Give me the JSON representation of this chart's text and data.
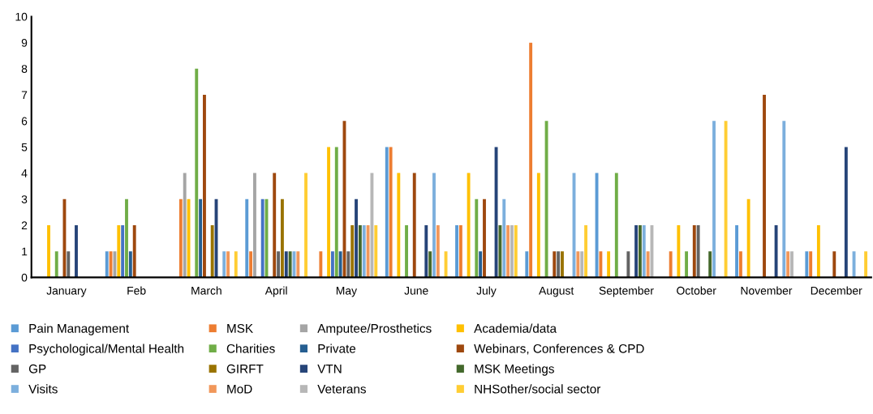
{
  "chart_data": {
    "type": "bar",
    "categories": [
      "January",
      "Feb",
      "March",
      "April",
      "May",
      "June",
      "July",
      "August",
      "September",
      "October",
      "November",
      "December"
    ],
    "ylim": [
      0,
      10
    ],
    "yticks": [
      0,
      1,
      2,
      3,
      4,
      5,
      6,
      7,
      8,
      9,
      10
    ],
    "grid": false,
    "legend": "bottom",
    "series": [
      {
        "name": "Pain Management",
        "color": "#5b9bd5",
        "values": [
          0,
          1,
          0,
          3,
          0,
          5,
          2,
          1,
          4,
          0,
          2,
          1
        ]
      },
      {
        "name": "MSK",
        "color": "#ed7d31",
        "values": [
          0,
          1,
          3,
          1,
          1,
          5,
          2,
          9,
          1,
          1,
          1,
          1
        ]
      },
      {
        "name": "Amputee/Prosthetics",
        "color": "#a5a5a5",
        "values": [
          0,
          1,
          4,
          4,
          0,
          0,
          0,
          0,
          0,
          0,
          0,
          0
        ]
      },
      {
        "name": "Academia/data",
        "color": "#ffc000",
        "values": [
          2,
          2,
          3,
          0,
          5,
          4,
          4,
          4,
          1,
          2,
          3,
          2
        ]
      },
      {
        "name": "Psychological/Mental Health",
        "color": "#4472c4",
        "values": [
          0,
          2,
          0,
          3,
          1,
          0,
          0,
          0,
          0,
          0,
          0,
          0
        ]
      },
      {
        "name": "Charities",
        "color": "#70ad47",
        "values": [
          1,
          3,
          8,
          3,
          5,
          2,
          3,
          6,
          4,
          1,
          0,
          0
        ]
      },
      {
        "name": "Private",
        "color": "#255e91",
        "values": [
          0,
          1,
          3,
          0,
          1,
          0,
          1,
          0,
          0,
          0,
          0,
          0
        ]
      },
      {
        "name": "Webinars, Conferences & CPD",
        "color": "#9e480e",
        "values": [
          3,
          2,
          7,
          4,
          6,
          4,
          3,
          1,
          0,
          2,
          7,
          1
        ]
      },
      {
        "name": "GP",
        "color": "#636363",
        "values": [
          1,
          0,
          0,
          1,
          1,
          0,
          0,
          1,
          1,
          2,
          0,
          0
        ]
      },
      {
        "name": "GIRFT",
        "color": "#997300",
        "values": [
          0,
          0,
          2,
          3,
          2,
          0,
          0,
          1,
          0,
          0,
          0,
          0
        ]
      },
      {
        "name": "VTN",
        "color": "#264478",
        "values": [
          2,
          0,
          3,
          1,
          3,
          2,
          5,
          0,
          2,
          0,
          2,
          5
        ]
      },
      {
        "name": "MSK Meetings",
        "color": "#43682b",
        "values": [
          0,
          0,
          0,
          1,
          2,
          1,
          2,
          0,
          2,
          1,
          0,
          0
        ]
      },
      {
        "name": "Visits",
        "color": "#7cafdd",
        "values": [
          0,
          0,
          1,
          1,
          2,
          4,
          3,
          4,
          2,
          6,
          6,
          1
        ]
      },
      {
        "name": "MoD",
        "color": "#f1975a",
        "values": [
          0,
          0,
          1,
          1,
          2,
          2,
          2,
          1,
          1,
          0,
          1,
          0
        ]
      },
      {
        "name": "Veterans",
        "color": "#b7b7b7",
        "values": [
          0,
          0,
          0,
          0,
          4,
          0,
          2,
          1,
          2,
          0,
          1,
          0
        ]
      },
      {
        "name": "NHSother/social sector",
        "color": "#ffcd33",
        "values": [
          0,
          0,
          1,
          4,
          2,
          1,
          2,
          2,
          0,
          6,
          0,
          1
        ]
      }
    ]
  }
}
